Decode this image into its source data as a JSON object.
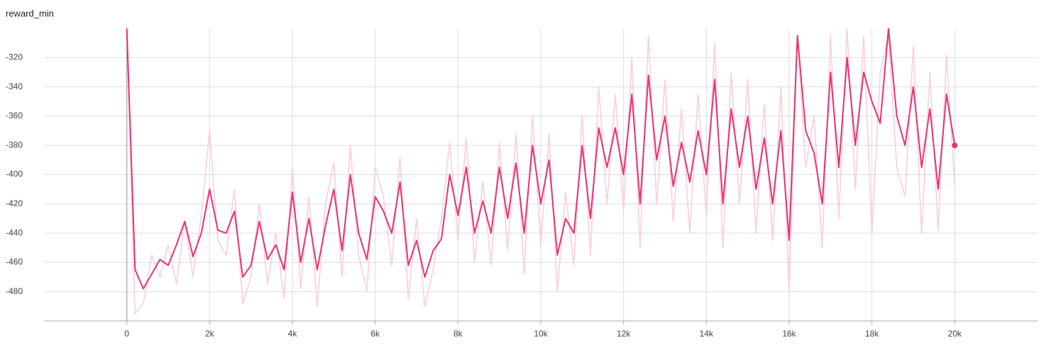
{
  "chart_data": {
    "type": "line",
    "title": "reward_min",
    "x": [
      0,
      200,
      400,
      600,
      800,
      1000,
      1200,
      1400,
      1600,
      1800,
      2000,
      2200,
      2400,
      2600,
      2800,
      3000,
      3200,
      3400,
      3600,
      3800,
      4000,
      4200,
      4400,
      4600,
      4800,
      5000,
      5200,
      5400,
      5600,
      5800,
      6000,
      6200,
      6400,
      6600,
      6800,
      7000,
      7200,
      7400,
      7600,
      7800,
      8000,
      8200,
      8400,
      8600,
      8800,
      9000,
      9200,
      9400,
      9600,
      9800,
      10000,
      10200,
      10400,
      10600,
      10800,
      11000,
      11200,
      11400,
      11600,
      11800,
      12000,
      12200,
      12400,
      12600,
      12800,
      13000,
      13200,
      13400,
      13600,
      13800,
      14000,
      14200,
      14400,
      14600,
      14800,
      15000,
      15200,
      15400,
      15600,
      15800,
      16000,
      16200,
      16400,
      16600,
      16800,
      17000,
      17200,
      17400,
      17600,
      17800,
      18000,
      18200,
      18400,
      18600,
      18800,
      19000,
      19200,
      19400,
      19600,
      19800,
      20000
    ],
    "series": [
      {
        "color": "#f9cfdd",
        "values": [
          -300,
          -495,
          -488,
          -455,
          -470,
          -448,
          -475,
          -432,
          -470,
          -428,
          -370,
          -445,
          -455,
          -410,
          -488,
          -470,
          -420,
          -475,
          -440,
          -485,
          -395,
          -478,
          -415,
          -490,
          -420,
          -392,
          -470,
          -380,
          -455,
          -480,
          -395,
          -415,
          -462,
          -388,
          -485,
          -430,
          -490,
          -465,
          -430,
          -378,
          -445,
          -375,
          -460,
          -405,
          -462,
          -378,
          -452,
          -372,
          -468,
          -360,
          -448,
          -372,
          -480,
          -412,
          -462,
          -360,
          -455,
          -340,
          -420,
          -345,
          -425,
          -320,
          -450,
          -305,
          -420,
          -335,
          -432,
          -355,
          -440,
          -345,
          -428,
          -310,
          -450,
          -330,
          -420,
          -335,
          -440,
          -352,
          -445,
          -340,
          -480,
          -305,
          -395,
          -360,
          -450,
          -305,
          -430,
          -300,
          -410,
          -305,
          -440,
          -330,
          -305,
          -395,
          -415,
          -312,
          -440,
          -330,
          -438,
          -318,
          -408
        ]
      },
      {
        "color": "#e8336e",
        "values": [
          -300,
          -465,
          -478,
          -468,
          -458,
          -462,
          -448,
          -432,
          -456,
          -440,
          -410,
          -438,
          -440,
          -425,
          -470,
          -462,
          -432,
          -458,
          -448,
          -465,
          -412,
          -460,
          -430,
          -465,
          -435,
          -410,
          -452,
          -400,
          -440,
          -458,
          -415,
          -425,
          -440,
          -405,
          -462,
          -445,
          -470,
          -452,
          -444,
          -400,
          -428,
          -395,
          -440,
          -418,
          -440,
          -395,
          -430,
          -392,
          -440,
          -380,
          -420,
          -390,
          -455,
          -430,
          -440,
          -380,
          -430,
          -368,
          -395,
          -368,
          -400,
          -345,
          -420,
          -332,
          -390,
          -360,
          -408,
          -378,
          -405,
          -370,
          -400,
          -335,
          -420,
          -355,
          -395,
          -360,
          -410,
          -375,
          -420,
          -370,
          -445,
          -305,
          -370,
          -385,
          -420,
          -330,
          -395,
          -320,
          -380,
          -330,
          -350,
          -365,
          -300,
          -360,
          -380,
          -340,
          -395,
          -355,
          -410,
          -345,
          -380
        ]
      }
    ],
    "xlim": [
      -2000,
      22000
    ],
    "ylim": [
      -500,
      -300
    ],
    "xticks": [
      0,
      {
        "value": 2000,
        "label": "2k"
      },
      {
        "value": 4000,
        "label": "4k"
      },
      {
        "value": 6000,
        "label": "6k"
      },
      {
        "value": 8000,
        "label": "8k"
      },
      {
        "value": 10000,
        "label": "10k"
      },
      {
        "value": 12000,
        "label": "12k"
      },
      {
        "value": 14000,
        "label": "14k"
      },
      {
        "value": 16000,
        "label": "16k"
      },
      {
        "value": 18000,
        "label": "18k"
      },
      {
        "value": 20000,
        "label": "20k"
      }
    ],
    "yticks": [
      -480,
      -460,
      -440,
      -420,
      -400,
      -380,
      -360,
      -340,
      -320
    ],
    "grid": true
  }
}
